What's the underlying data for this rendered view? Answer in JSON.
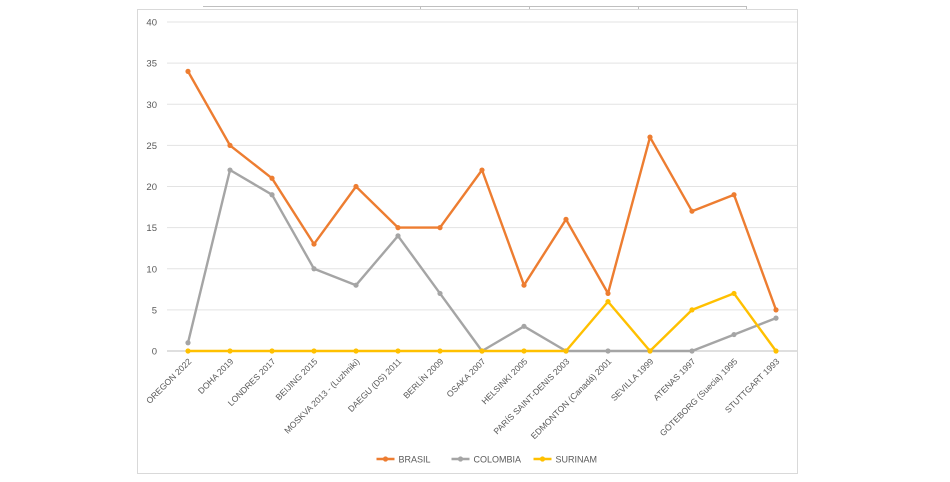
{
  "chart_data": {
    "type": "line",
    "title": "",
    "xlabel": "",
    "ylabel": "",
    "ylim": [
      0,
      40
    ],
    "yticks": [
      0,
      5,
      10,
      15,
      20,
      25,
      30,
      35,
      40
    ],
    "grid": true,
    "legend_position": "bottom",
    "categories": [
      "OREGON 2022",
      "DOHA 2019",
      "LONDRES 2017",
      "BEIJING 2015",
      "MOSKVA 2013 - (Luzhniki)",
      "DAEGU (DS) 2011",
      "BERLÍN 2009",
      "OSAKA 2007",
      "HELSINKI 2005",
      "PARÍS SAINT-DENIS 2003",
      "EDMONTON (Canadá) 2001",
      "SEVILLA 1999",
      "ATENAS 1997",
      "GÖTEBORG (Suecia) 1995",
      "STUTTGART 1993"
    ],
    "series": [
      {
        "name": "BRASIL",
        "color": "#ED7D31",
        "values": [
          34,
          25,
          21,
          13,
          20,
          15,
          15,
          22,
          8,
          16,
          7,
          26,
          17,
          19,
          5
        ]
      },
      {
        "name": "COLOMBIA",
        "color": "#A5A5A5",
        "values": [
          1,
          22,
          19,
          10,
          8,
          14,
          7,
          0,
          3,
          0,
          0,
          0,
          0,
          2,
          4
        ]
      },
      {
        "name": "SURINAM",
        "color": "#FFC000",
        "values": [
          0,
          0,
          0,
          0,
          0,
          0,
          0,
          0,
          0,
          0,
          6,
          0,
          5,
          7,
          0
        ]
      }
    ]
  }
}
